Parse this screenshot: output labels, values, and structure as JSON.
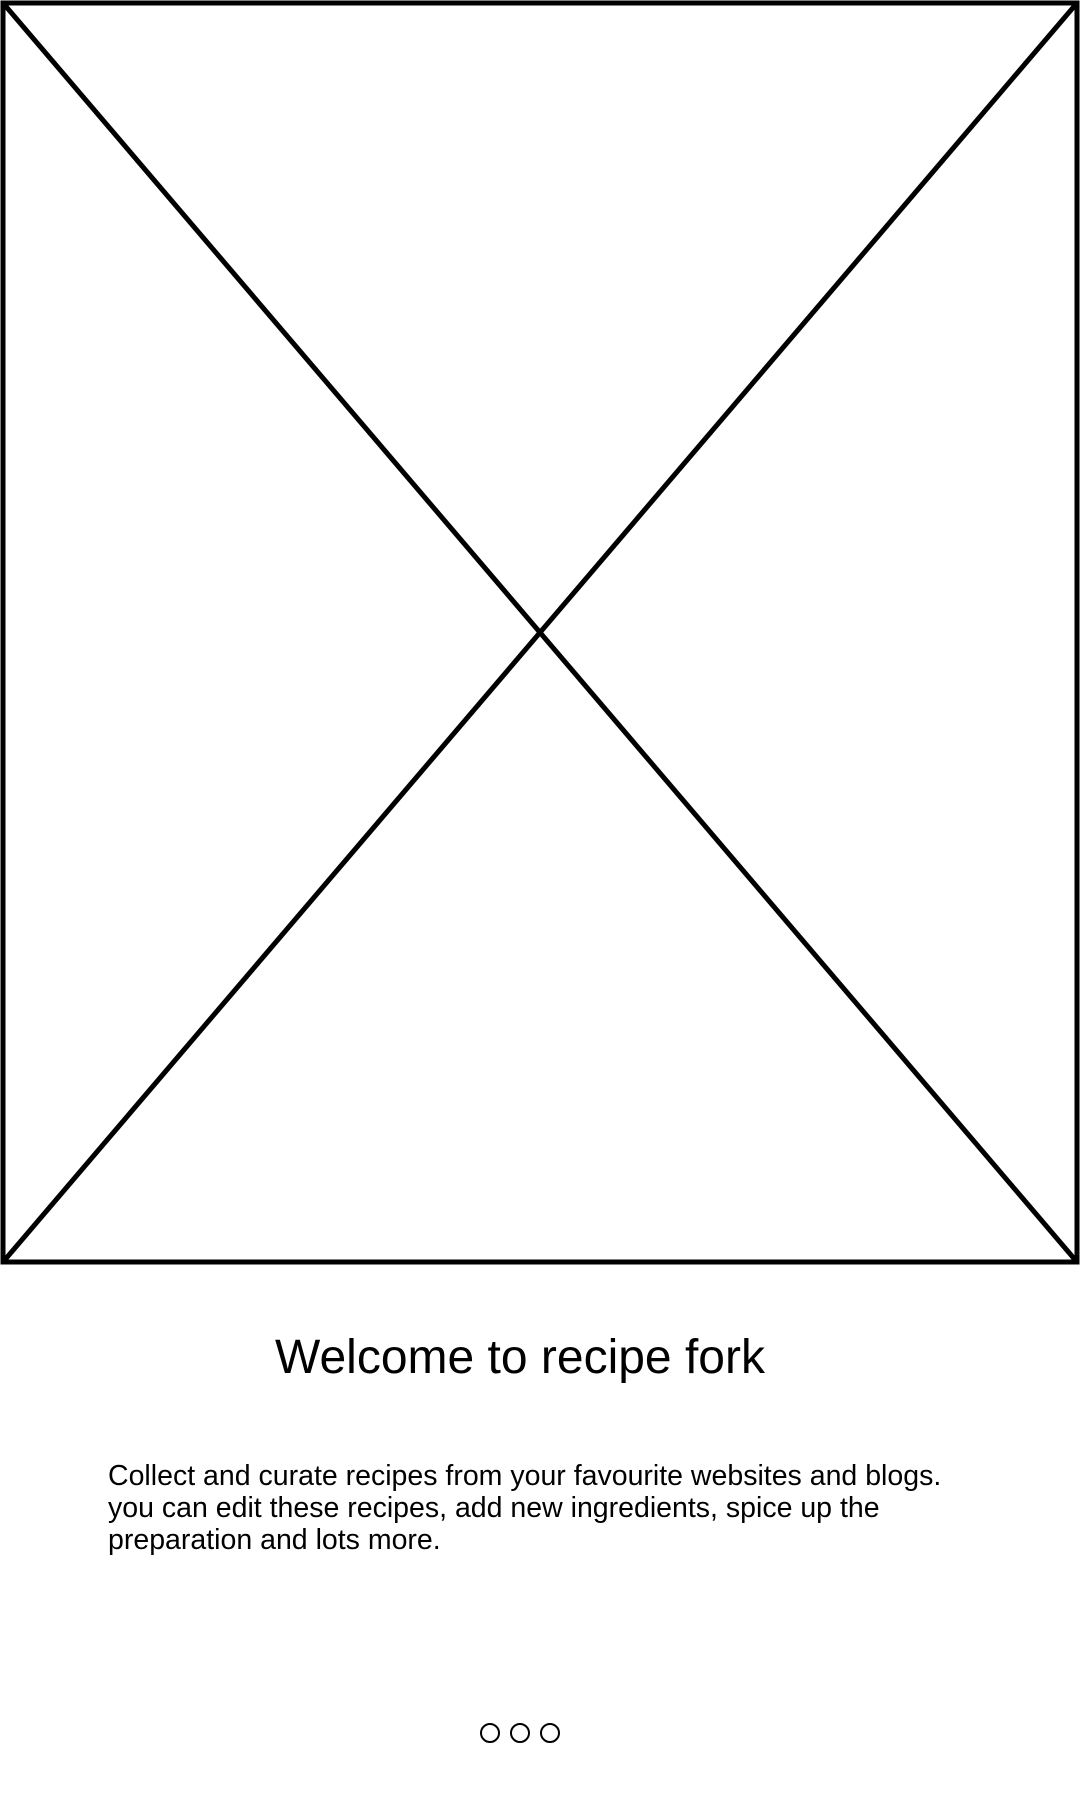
{
  "onboarding": {
    "image": {
      "icon": "image-placeholder-icon"
    },
    "title": "Welcome to recipe fork",
    "description": "Collect and curate recipes from your favourite websites and blogs. you can edit these recipes, add new ingredients, spice up the preparation and lots more.",
    "pager": {
      "page_count": 3,
      "active_index": null
    }
  }
}
